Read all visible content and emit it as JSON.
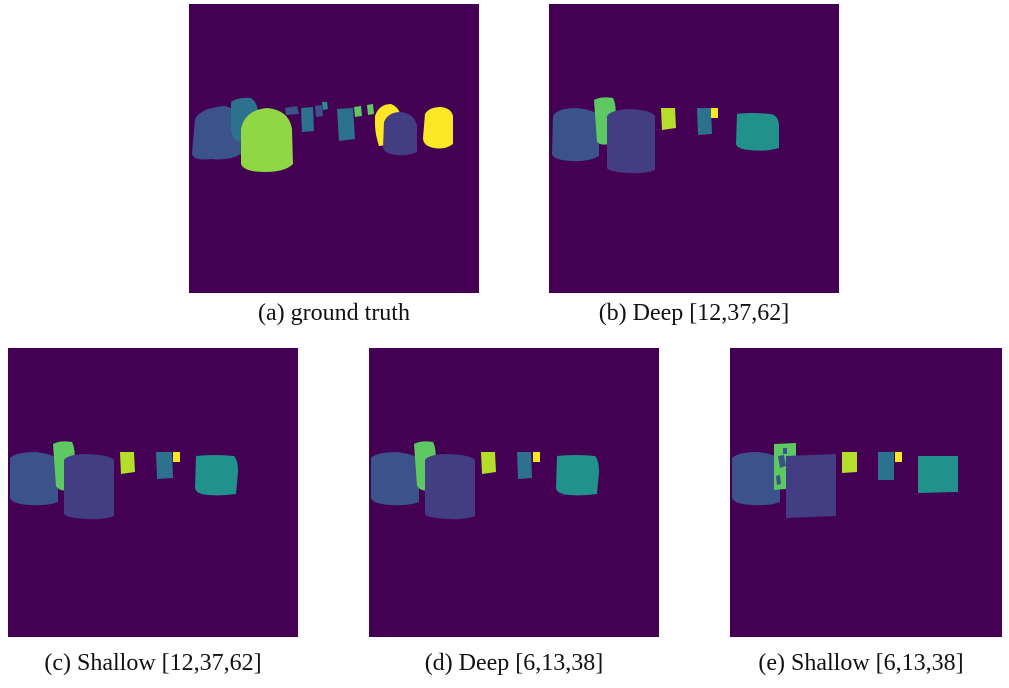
{
  "figure": {
    "panels": [
      {
        "id": "a",
        "caption": "(a) ground truth"
      },
      {
        "id": "b",
        "caption": "(b) Deep [12,37,62]"
      },
      {
        "id": "c",
        "caption": "(c) Shallow [12,37,62]"
      },
      {
        "id": "d",
        "caption": "(d) Deep [6,13,38]"
      },
      {
        "id": "e",
        "caption": "(e) Shallow [6,13,38]"
      }
    ],
    "colors": {
      "background": "#440154",
      "blue": "#3b528b",
      "indigo": "#433d84",
      "teal": "#2c728e",
      "cyan_green": "#21918c",
      "green": "#5ec962",
      "light_green": "#8fd744",
      "yellow_green": "#b5de2b",
      "yellow": "#fde725"
    }
  }
}
